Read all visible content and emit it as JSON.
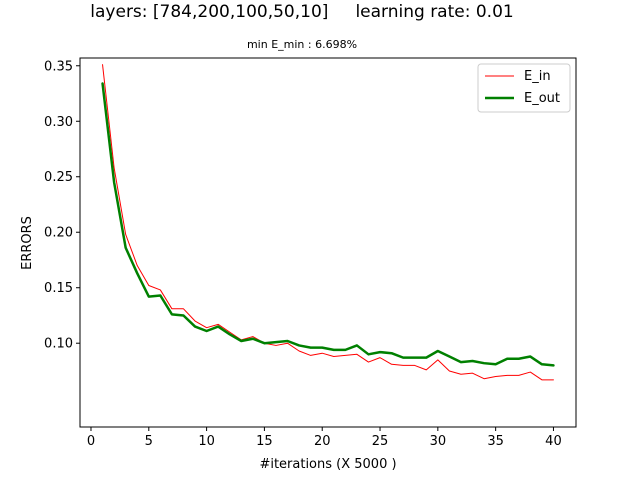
{
  "figure": {
    "title_left": "layers: [784,200,100,50,10]",
    "title_right": "learning rate: 0.01",
    "subtitle": "min E_min : 6.698%"
  },
  "chart_data": {
    "type": "line",
    "xlabel": "#iterations (X 5000 )",
    "ylabel": "ERRORS",
    "xlim": [
      -0.95,
      41.95
    ],
    "ylim": [
      0.0245,
      0.357
    ],
    "xticks": [
      0,
      5,
      10,
      15,
      20,
      25,
      30,
      35,
      40
    ],
    "yticks": [
      0.1,
      0.15,
      0.2,
      0.25,
      0.3,
      0.35
    ],
    "ytick_labels": [
      "0.10",
      "0.15",
      "0.20",
      "0.25",
      "0.30",
      "0.35"
    ],
    "legend_position": "top-right",
    "grid": false,
    "x": [
      1,
      2,
      3,
      4,
      5,
      6,
      7,
      8,
      9,
      10,
      11,
      12,
      13,
      14,
      15,
      16,
      17,
      18,
      19,
      20,
      21,
      22,
      23,
      24,
      25,
      26,
      27,
      28,
      29,
      30,
      31,
      32,
      33,
      34,
      35,
      36,
      37,
      38,
      39,
      40
    ],
    "series": [
      {
        "name": "E_in",
        "color": "#ff0000",
        "linewidth": 1,
        "values": [
          0.351,
          0.258,
          0.198,
          0.17,
          0.152,
          0.148,
          0.131,
          0.131,
          0.12,
          0.114,
          0.117,
          0.11,
          0.103,
          0.106,
          0.1,
          0.098,
          0.1,
          0.093,
          0.089,
          0.091,
          0.088,
          0.089,
          0.09,
          0.083,
          0.087,
          0.081,
          0.08,
          0.08,
          0.076,
          0.085,
          0.075,
          0.072,
          0.073,
          0.068,
          0.07,
          0.071,
          0.071,
          0.074,
          0.067,
          0.067
        ]
      },
      {
        "name": "E_out",
        "color": "#008000",
        "linewidth": 2.5,
        "values": [
          0.334,
          0.245,
          0.186,
          0.163,
          0.142,
          0.143,
          0.126,
          0.125,
          0.115,
          0.111,
          0.115,
          0.108,
          0.102,
          0.104,
          0.1,
          0.101,
          0.102,
          0.098,
          0.096,
          0.096,
          0.094,
          0.094,
          0.098,
          0.09,
          0.092,
          0.091,
          0.087,
          0.087,
          0.087,
          0.093,
          0.088,
          0.083,
          0.084,
          0.082,
          0.081,
          0.086,
          0.086,
          0.088,
          0.081,
          0.08
        ]
      }
    ]
  }
}
